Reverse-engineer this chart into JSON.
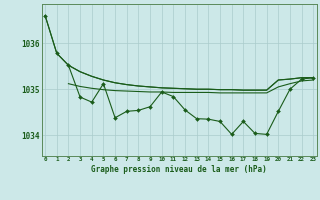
{
  "background_color": "#cce8e8",
  "grid_color": "#aacccc",
  "line_color": "#1a5c1a",
  "title": "Graphe pression niveau de la mer (hPa)",
  "ylabel_ticks": [
    1034,
    1035,
    1036
  ],
  "xlim": [
    -0.3,
    23.3
  ],
  "ylim": [
    1033.55,
    1036.85
  ],
  "smooth_line1": {
    "x": [
      0,
      1,
      2,
      3,
      4,
      5,
      6,
      7,
      8,
      9,
      10,
      11,
      12,
      13,
      14,
      15,
      16,
      17,
      18,
      19,
      20,
      21,
      22,
      23
    ],
    "y": [
      1036.6,
      1035.78,
      1035.52,
      1035.38,
      1035.28,
      1035.2,
      1035.14,
      1035.1,
      1035.07,
      1035.05,
      1035.03,
      1035.02,
      1035.01,
      1035.0,
      1035.0,
      1034.99,
      1034.99,
      1034.98,
      1034.98,
      1034.98,
      1035.2,
      1035.22,
      1035.25,
      1035.25
    ]
  },
  "smooth_line2": {
    "x": [
      2,
      3,
      4,
      5,
      6,
      7,
      8,
      9,
      10,
      11,
      12,
      13,
      14,
      15,
      16,
      17,
      18,
      19,
      20,
      21,
      22,
      23
    ],
    "y": [
      1035.52,
      1035.38,
      1035.28,
      1035.2,
      1035.14,
      1035.1,
      1035.07,
      1035.05,
      1035.03,
      1035.02,
      1035.01,
      1035.0,
      1035.0,
      1034.99,
      1034.99,
      1034.98,
      1034.98,
      1034.98,
      1035.2,
      1035.22,
      1035.25,
      1035.25
    ]
  },
  "smooth_line3": {
    "x": [
      2,
      3,
      4,
      5,
      6,
      7,
      8,
      9,
      10,
      11,
      12,
      13,
      14,
      15,
      16,
      17,
      18,
      19,
      20,
      21,
      22,
      23
    ],
    "y": [
      1035.12,
      1035.06,
      1035.02,
      1034.99,
      1034.97,
      1034.96,
      1034.95,
      1034.94,
      1034.94,
      1034.93,
      1034.93,
      1034.93,
      1034.93,
      1034.92,
      1034.92,
      1034.92,
      1034.92,
      1034.92,
      1035.05,
      1035.12,
      1035.18,
      1035.2
    ]
  },
  "marker_line": {
    "x": [
      0,
      1,
      2,
      3,
      4,
      5,
      6,
      7,
      8,
      9,
      10,
      11,
      12,
      13,
      14,
      15,
      16,
      17,
      18,
      19,
      20,
      21,
      22,
      23
    ],
    "y": [
      1036.6,
      1035.78,
      1035.52,
      1034.83,
      1034.72,
      1035.12,
      1034.38,
      1034.52,
      1034.54,
      1034.62,
      1034.94,
      1034.84,
      1034.55,
      1034.36,
      1034.35,
      1034.3,
      1034.02,
      1034.3,
      1034.04,
      1034.02,
      1034.52,
      1035.0,
      1035.22,
      1035.25
    ]
  }
}
